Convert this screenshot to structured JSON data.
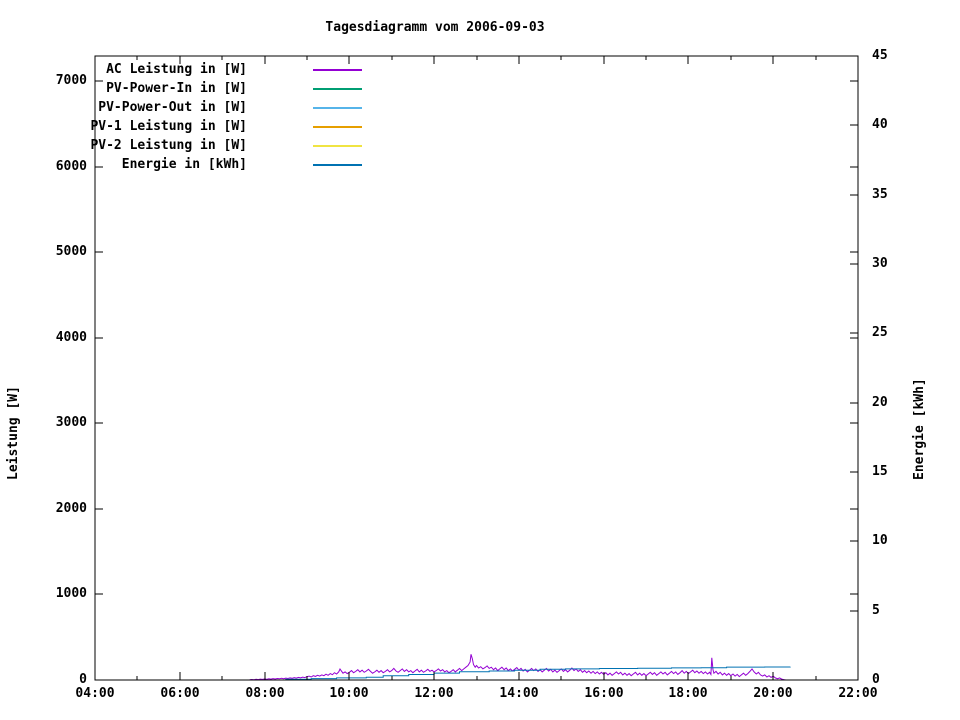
{
  "title": "Tagesdiagramm vom 2006-09-03",
  "chart_data": {
    "type": "line",
    "title": "Tagesdiagramm vom 2006-09-03",
    "background": "#ffffff",
    "grid": false,
    "legend_position": "top-left-inside",
    "x_axis": {
      "start_hour": 4,
      "end_hour": 22,
      "major_step_hours": 2,
      "minor_step_hours": 1,
      "tick_labels": [
        "04:00",
        "06:00",
        "08:00",
        "10:00",
        "12:00",
        "14:00",
        "16:00",
        "18:00",
        "20:00",
        "22:00"
      ]
    },
    "y_left": {
      "label": "Leistung [W]",
      "min": 0,
      "max": 7292,
      "ticks": [
        0,
        1000,
        2000,
        3000,
        4000,
        5000,
        6000,
        7000
      ],
      "tick_labels": [
        "0",
        "1000",
        "2000",
        "3000",
        "4000",
        "5000",
        "6000",
        "7000"
      ]
    },
    "y_right": {
      "label": "Energie [kWh]",
      "min": 0,
      "max": 45,
      "ticks": [
        0,
        5,
        10,
        15,
        20,
        25,
        30,
        35,
        40,
        45
      ],
      "tick_labels": [
        "0",
        "5",
        "10",
        "15",
        "20",
        "25",
        "30",
        "35",
        "40",
        "45"
      ],
      "mirror_left_axis_ticks": true
    },
    "series": [
      {
        "name": "AC Leistung in [W]",
        "color": "#9400d3",
        "axis": "left",
        "mode": "linear",
        "points": [
          [
            7.65,
            2
          ],
          [
            7.7,
            6
          ],
          [
            7.75,
            3
          ],
          [
            7.8,
            8
          ],
          [
            7.85,
            5
          ],
          [
            7.9,
            10
          ],
          [
            7.95,
            7
          ],
          [
            8.0,
            12
          ],
          [
            8.05,
            8
          ],
          [
            8.1,
            14
          ],
          [
            8.15,
            10
          ],
          [
            8.2,
            16
          ],
          [
            8.25,
            12
          ],
          [
            8.3,
            18
          ],
          [
            8.35,
            14
          ],
          [
            8.4,
            20
          ],
          [
            8.45,
            15
          ],
          [
            8.5,
            22
          ],
          [
            8.55,
            17
          ],
          [
            8.6,
            24
          ],
          [
            8.65,
            20
          ],
          [
            8.7,
            28
          ],
          [
            8.75,
            22
          ],
          [
            8.8,
            30
          ],
          [
            8.85,
            25
          ],
          [
            8.9,
            34
          ],
          [
            8.95,
            28
          ],
          [
            9.0,
            38
          ],
          [
            9.05,
            45
          ],
          [
            9.1,
            35
          ],
          [
            9.15,
            50
          ],
          [
            9.2,
            42
          ],
          [
            9.25,
            55
          ],
          [
            9.3,
            45
          ],
          [
            9.35,
            60
          ],
          [
            9.4,
            50
          ],
          [
            9.45,
            68
          ],
          [
            9.5,
            55
          ],
          [
            9.55,
            75
          ],
          [
            9.6,
            62
          ],
          [
            9.65,
            85
          ],
          [
            9.7,
            70
          ],
          [
            9.75,
            95
          ],
          [
            9.78,
            128
          ],
          [
            9.82,
            100
          ],
          [
            9.85,
            80
          ],
          [
            9.9,
            95
          ],
          [
            9.95,
            75
          ],
          [
            10.0,
            90
          ],
          [
            10.05,
            110
          ],
          [
            10.1,
            85
          ],
          [
            10.15,
            100
          ],
          [
            10.2,
            120
          ],
          [
            10.25,
            95
          ],
          [
            10.3,
            115
          ],
          [
            10.35,
            90
          ],
          [
            10.4,
            105
          ],
          [
            10.45,
            125
          ],
          [
            10.5,
            100
          ],
          [
            10.55,
            80
          ],
          [
            10.6,
            95
          ],
          [
            10.65,
            115
          ],
          [
            10.7,
            90
          ],
          [
            10.75,
            110
          ],
          [
            10.8,
            85
          ],
          [
            10.85,
            100
          ],
          [
            10.9,
            120
          ],
          [
            10.95,
            95
          ],
          [
            11.0,
            110
          ],
          [
            11.05,
            135
          ],
          [
            11.1,
            105
          ],
          [
            11.15,
            90
          ],
          [
            11.2,
            110
          ],
          [
            11.25,
            130
          ],
          [
            11.3,
            100
          ],
          [
            11.35,
            120
          ],
          [
            11.4,
            95
          ],
          [
            11.45,
            110
          ],
          [
            11.5,
            85
          ],
          [
            11.55,
            105
          ],
          [
            11.6,
            125
          ],
          [
            11.65,
            95
          ],
          [
            11.7,
            115
          ],
          [
            11.75,
            90
          ],
          [
            11.8,
            105
          ],
          [
            11.85,
            125
          ],
          [
            11.9,
            100
          ],
          [
            11.95,
            115
          ],
          [
            12.0,
            95
          ],
          [
            12.05,
            110
          ],
          [
            12.1,
            130
          ],
          [
            12.15,
            105
          ],
          [
            12.2,
            120
          ],
          [
            12.25,
            95
          ],
          [
            12.3,
            110
          ],
          [
            12.35,
            85
          ],
          [
            12.4,
            100
          ],
          [
            12.45,
            120
          ],
          [
            12.5,
            95
          ],
          [
            12.55,
            115
          ],
          [
            12.6,
            135
          ],
          [
            12.65,
            110
          ],
          [
            12.7,
            130
          ],
          [
            12.75,
            150
          ],
          [
            12.8,
            170
          ],
          [
            12.85,
            210
          ],
          [
            12.87,
            300
          ],
          [
            12.9,
            250
          ],
          [
            12.93,
            180
          ],
          [
            12.97,
            150
          ],
          [
            13.0,
            170
          ],
          [
            13.05,
            140
          ],
          [
            13.1,
            155
          ],
          [
            13.15,
            130
          ],
          [
            13.2,
            145
          ],
          [
            13.25,
            165
          ],
          [
            13.3,
            135
          ],
          [
            13.35,
            150
          ],
          [
            13.4,
            120
          ],
          [
            13.45,
            140
          ],
          [
            13.5,
            110
          ],
          [
            13.55,
            130
          ],
          [
            13.6,
            150
          ],
          [
            13.65,
            120
          ],
          [
            13.7,
            140
          ],
          [
            13.75,
            110
          ],
          [
            13.8,
            130
          ],
          [
            13.85,
            105
          ],
          [
            13.9,
            125
          ],
          [
            13.95,
            145
          ],
          [
            14.0,
            115
          ],
          [
            14.05,
            135
          ],
          [
            14.1,
            105
          ],
          [
            14.15,
            125
          ],
          [
            14.2,
            95
          ],
          [
            14.25,
            115
          ],
          [
            14.3,
            135
          ],
          [
            14.35,
            110
          ],
          [
            14.4,
            130
          ],
          [
            14.45,
            100
          ],
          [
            14.5,
            120
          ],
          [
            14.55,
            95
          ],
          [
            14.6,
            115
          ],
          [
            14.65,
            135
          ],
          [
            14.7,
            105
          ],
          [
            14.75,
            125
          ],
          [
            14.8,
            95
          ],
          [
            14.85,
            115
          ],
          [
            14.9,
            90
          ],
          [
            14.95,
            110
          ],
          [
            15.0,
            130
          ],
          [
            15.05,
            100
          ],
          [
            15.1,
            120
          ],
          [
            15.15,
            95
          ],
          [
            15.2,
            115
          ],
          [
            15.25,
            140
          ],
          [
            15.3,
            110
          ],
          [
            15.35,
            130
          ],
          [
            15.4,
            100
          ],
          [
            15.45,
            120
          ],
          [
            15.5,
            90
          ],
          [
            15.55,
            110
          ],
          [
            15.6,
            85
          ],
          [
            15.65,
            105
          ],
          [
            15.7,
            80
          ],
          [
            15.75,
            100
          ],
          [
            15.8,
            75
          ],
          [
            15.85,
            95
          ],
          [
            15.9,
            70
          ],
          [
            15.95,
            90
          ],
          [
            16.0,
            65
          ],
          [
            16.05,
            85
          ],
          [
            16.1,
            60
          ],
          [
            16.15,
            80
          ],
          [
            16.2,
            55
          ],
          [
            16.25,
            75
          ],
          [
            16.3,
            95
          ],
          [
            16.35,
            70
          ],
          [
            16.4,
            90
          ],
          [
            16.45,
            60
          ],
          [
            16.5,
            80
          ],
          [
            16.55,
            55
          ],
          [
            16.6,
            75
          ],
          [
            16.65,
            50
          ],
          [
            16.7,
            70
          ],
          [
            16.75,
            90
          ],
          [
            16.8,
            60
          ],
          [
            16.85,
            80
          ],
          [
            16.9,
            55
          ],
          [
            16.95,
            75
          ],
          [
            17.0,
            50
          ],
          [
            17.05,
            70
          ],
          [
            17.1,
            90
          ],
          [
            17.15,
            65
          ],
          [
            17.2,
            85
          ],
          [
            17.25,
            55
          ],
          [
            17.3,
            75
          ],
          [
            17.35,
            95
          ],
          [
            17.4,
            70
          ],
          [
            17.45,
            90
          ],
          [
            17.5,
            60
          ],
          [
            17.55,
            80
          ],
          [
            17.6,
            100
          ],
          [
            17.65,
            75
          ],
          [
            17.7,
            95
          ],
          [
            17.75,
            65
          ],
          [
            17.8,
            85
          ],
          [
            17.85,
            110
          ],
          [
            17.9,
            80
          ],
          [
            17.95,
            100
          ],
          [
            18.0,
            75
          ],
          [
            18.05,
            95
          ],
          [
            18.1,
            115
          ],
          [
            18.15,
            85
          ],
          [
            18.2,
            105
          ],
          [
            18.25,
            80
          ],
          [
            18.3,
            100
          ],
          [
            18.35,
            75
          ],
          [
            18.4,
            95
          ],
          [
            18.45,
            70
          ],
          [
            18.5,
            90
          ],
          [
            18.53,
            65
          ],
          [
            18.55,
            260
          ],
          [
            18.58,
            120
          ],
          [
            18.6,
            80
          ],
          [
            18.65,
            100
          ],
          [
            18.7,
            70
          ],
          [
            18.75,
            90
          ],
          [
            18.8,
            60
          ],
          [
            18.85,
            80
          ],
          [
            18.9,
            55
          ],
          [
            18.95,
            75
          ],
          [
            19.0,
            50
          ],
          [
            19.05,
            70
          ],
          [
            19.1,
            45
          ],
          [
            19.15,
            65
          ],
          [
            19.2,
            40
          ],
          [
            19.25,
            60
          ],
          [
            19.3,
            80
          ],
          [
            19.35,
            55
          ],
          [
            19.4,
            75
          ],
          [
            19.45,
            100
          ],
          [
            19.5,
            130
          ],
          [
            19.55,
            95
          ],
          [
            19.6,
            70
          ],
          [
            19.65,
            90
          ],
          [
            19.7,
            60
          ],
          [
            19.75,
            45
          ],
          [
            19.8,
            60
          ],
          [
            19.85,
            35
          ],
          [
            19.9,
            50
          ],
          [
            19.95,
            30
          ],
          [
            20.0,
            45
          ],
          [
            20.05,
            25
          ],
          [
            20.1,
            15
          ],
          [
            20.15,
            25
          ],
          [
            20.2,
            10
          ],
          [
            20.25,
            5
          ],
          [
            20.3,
            0
          ]
        ]
      },
      {
        "name": "PV-Power-In in [W]",
        "color": "#009e73",
        "axis": "left",
        "mode": "linear",
        "points": [
          [
            7.65,
            0
          ],
          [
            20.3,
            0
          ]
        ]
      },
      {
        "name": "PV-Power-Out in [W]",
        "color": "#56b4e9",
        "axis": "left",
        "mode": "linear",
        "points": [
          [
            7.65,
            0
          ],
          [
            20.3,
            0
          ]
        ]
      },
      {
        "name": "PV-1 Leistung in [W]",
        "color": "#e69f00",
        "axis": "left",
        "mode": "linear",
        "points": [
          [
            7.65,
            0
          ],
          [
            20.3,
            0
          ]
        ]
      },
      {
        "name": "PV-2 Leistung in [W]",
        "color": "#f0e442",
        "axis": "left",
        "mode": "linear",
        "points": [
          [
            7.65,
            0
          ],
          [
            20.3,
            0
          ]
        ]
      },
      {
        "name": "Energie in [kWh]",
        "color": "#0072b2",
        "axis": "right",
        "mode": "step",
        "points": [
          [
            8.0,
            0
          ],
          [
            8.5,
            0.05
          ],
          [
            9.1,
            0.1
          ],
          [
            9.7,
            0.15
          ],
          [
            10.4,
            0.2
          ],
          [
            10.8,
            0.3
          ],
          [
            11.4,
            0.4
          ],
          [
            12.0,
            0.5
          ],
          [
            12.6,
            0.6
          ],
          [
            13.3,
            0.65
          ],
          [
            13.9,
            0.7
          ],
          [
            14.5,
            0.77
          ],
          [
            15.1,
            0.8
          ],
          [
            15.9,
            0.83
          ],
          [
            16.8,
            0.85
          ],
          [
            17.6,
            0.87
          ],
          [
            18.3,
            0.88
          ],
          [
            18.9,
            0.93
          ],
          [
            19.8,
            0.94
          ],
          [
            20.4,
            0.95
          ]
        ]
      }
    ]
  }
}
